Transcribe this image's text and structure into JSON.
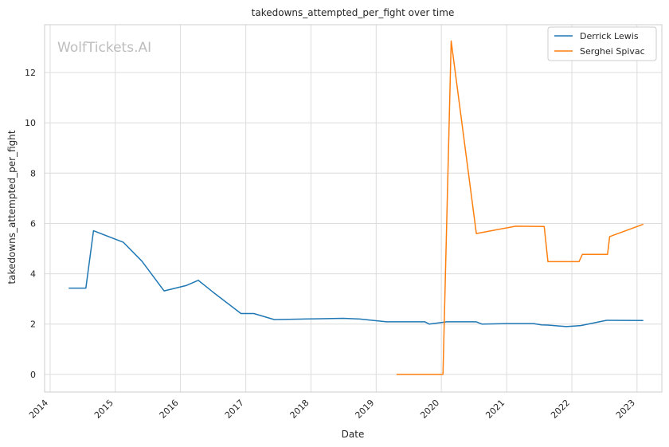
{
  "chart_data": {
    "type": "line",
    "title": "takedowns_attempted_per_fight over time",
    "xlabel": "Date",
    "ylabel": "takedowns_attempted_per_fight",
    "watermark": "WolfTickets.AI",
    "x_tick_labels": [
      "2014",
      "2015",
      "2016",
      "2017",
      "2018",
      "2019",
      "2020",
      "2021",
      "2022",
      "2023"
    ],
    "y_ticks": [
      0,
      2,
      4,
      6,
      8,
      10,
      12
    ],
    "xlim": [
      "2013-12-01",
      "2023-05-20"
    ],
    "ylim": [
      -0.7,
      13.9
    ],
    "grid": true,
    "legend_position": "top-right",
    "series": [
      {
        "name": "Derrick Lewis",
        "color": "#1f77b4",
        "points": [
          [
            "2014-04-15",
            3.43
          ],
          [
            "2014-07-20",
            3.43
          ],
          [
            "2014-09-01",
            5.71
          ],
          [
            "2015-02-15",
            5.25
          ],
          [
            "2015-05-30",
            4.5
          ],
          [
            "2015-10-01",
            3.32
          ],
          [
            "2016-02-01",
            3.53
          ],
          [
            "2016-04-10",
            3.74
          ],
          [
            "2016-07-01",
            3.27
          ],
          [
            "2016-12-05",
            2.42
          ],
          [
            "2017-02-15",
            2.42
          ],
          [
            "2017-06-10",
            2.18
          ],
          [
            "2018-02-01",
            2.21
          ],
          [
            "2018-07-01",
            2.23
          ],
          [
            "2018-10-01",
            2.2
          ],
          [
            "2019-03-01",
            2.09
          ],
          [
            "2019-10-01",
            2.09
          ],
          [
            "2019-10-25",
            2.0
          ],
          [
            "2020-02-01",
            2.09
          ],
          [
            "2020-07-15",
            2.09
          ],
          [
            "2020-08-15",
            2.0
          ],
          [
            "2021-01-15",
            2.02
          ],
          [
            "2021-06-01",
            2.02
          ],
          [
            "2021-07-15",
            1.97
          ],
          [
            "2021-08-20",
            1.96
          ],
          [
            "2021-12-01",
            1.9
          ],
          [
            "2022-02-20",
            1.94
          ],
          [
            "2022-07-15",
            2.15
          ],
          [
            "2023-02-05",
            2.14
          ]
        ]
      },
      {
        "name": "Serghei Spivac",
        "color": "#ff7f0e",
        "points": [
          [
            "2019-04-25",
            0.0
          ],
          [
            "2020-01-10",
            0.0
          ],
          [
            "2020-02-25",
            13.25
          ],
          [
            "2020-07-15",
            5.6
          ],
          [
            "2021-02-20",
            5.89
          ],
          [
            "2021-07-30",
            5.88
          ],
          [
            "2021-08-20",
            4.48
          ],
          [
            "2022-02-10",
            4.48
          ],
          [
            "2022-03-01",
            4.77
          ],
          [
            "2022-07-20",
            4.77
          ],
          [
            "2022-08-01",
            5.48
          ],
          [
            "2023-02-05",
            5.97
          ]
        ]
      }
    ]
  }
}
